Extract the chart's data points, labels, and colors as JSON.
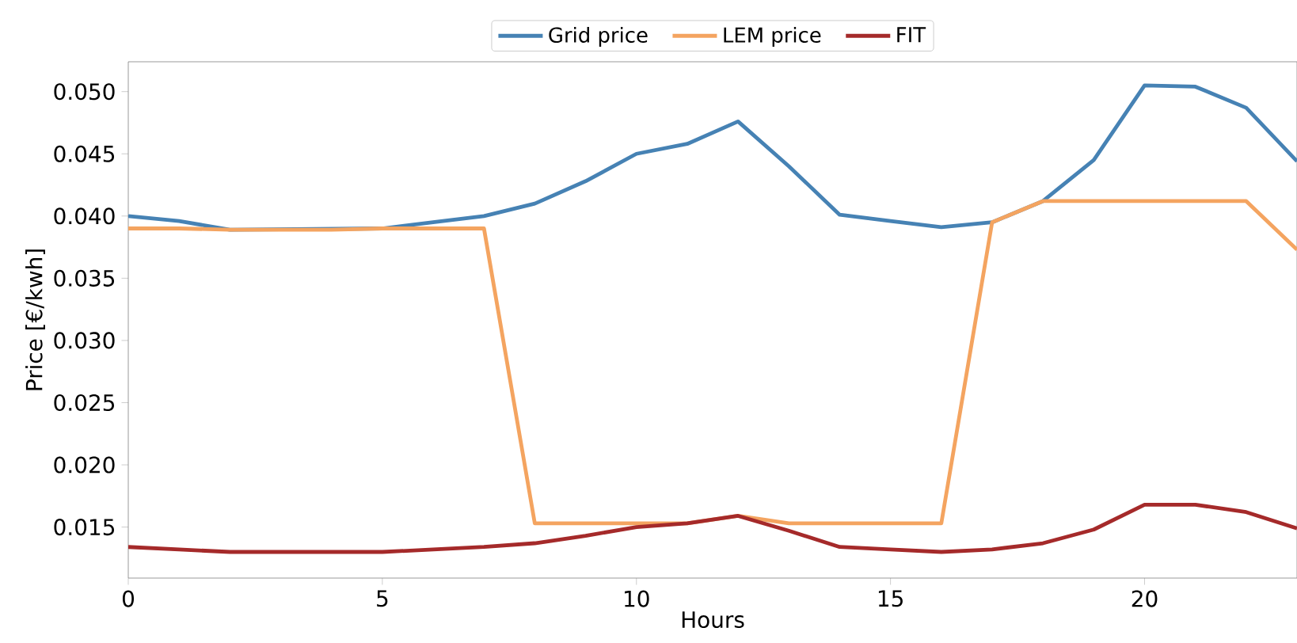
{
  "chart_data": {
    "type": "line",
    "xlabel": "Hours",
    "ylabel": "Price [€/kwh]",
    "x": [
      0,
      1,
      2,
      3,
      4,
      5,
      6,
      7,
      8,
      9,
      10,
      11,
      12,
      13,
      14,
      15,
      16,
      17,
      18,
      19,
      20,
      21,
      22,
      23
    ],
    "series": [
      {
        "name": "Grid price",
        "color": "#4682b4",
        "values": [
          0.04,
          0.0396,
          0.0389,
          null,
          null,
          0.039,
          0.0395,
          0.04,
          0.041,
          0.0428,
          0.045,
          0.0458,
          0.0476,
          0.044,
          0.0401,
          0.0396,
          0.0391,
          0.0395,
          0.0412,
          0.0445,
          0.0505,
          0.0504,
          0.0487,
          0.0444
        ]
      },
      {
        "name": "LEM price",
        "color": "#f4a460",
        "values": [
          0.039,
          0.039,
          0.0389,
          0.0389,
          0.0389,
          0.039,
          0.039,
          0.039,
          0.0153,
          0.0153,
          0.0153,
          0.0153,
          0.0159,
          0.0153,
          0.0153,
          0.0153,
          0.0153,
          0.0395,
          0.0412,
          0.0412,
          0.0412,
          0.0412,
          0.0412,
          0.0373
        ]
      },
      {
        "name": "FIT",
        "color": "#a52a2a",
        "values": [
          0.0134,
          0.0132,
          0.013,
          0.013,
          0.013,
          0.013,
          0.0132,
          0.0134,
          0.0137,
          0.0143,
          0.015,
          0.0153,
          0.0159,
          0.0147,
          0.0134,
          0.0132,
          0.013,
          0.0132,
          0.0137,
          0.0148,
          0.0168,
          0.0168,
          0.0162,
          0.0149
        ]
      }
    ],
    "xlim": [
      0,
      23
    ],
    "ylim": [
      0.0109,
      0.0524
    ],
    "xticks": [
      0,
      5,
      10,
      15,
      20
    ],
    "yticks": [
      {
        "value": 0.015,
        "label": "0.015"
      },
      {
        "value": 0.02,
        "label": "0.020"
      },
      {
        "value": 0.025,
        "label": "0.025"
      },
      {
        "value": 0.03,
        "label": "0.030"
      },
      {
        "value": 0.035,
        "label": "0.035"
      },
      {
        "value": 0.04,
        "label": "0.040"
      },
      {
        "value": 0.045,
        "label": "0.045"
      },
      {
        "value": 0.05,
        "label": "0.050"
      }
    ],
    "grid": false,
    "legend": "top",
    "marker": "none",
    "line_style": "solid"
  }
}
